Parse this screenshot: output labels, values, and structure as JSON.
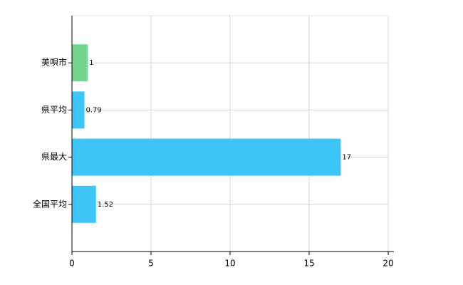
{
  "chart_data": {
    "type": "hbar",
    "categories": [
      "美唄市",
      "県平均",
      "県最大",
      "全国平均"
    ],
    "values": [
      1,
      0.79,
      17,
      1.52
    ],
    "colors": [
      "#72d48e",
      "#3fc4f6",
      "#3fc4f6",
      "#3fc4f6"
    ],
    "xlim": [
      0,
      20
    ],
    "xticks": [
      0,
      5,
      10,
      15,
      20
    ],
    "grid": true
  }
}
